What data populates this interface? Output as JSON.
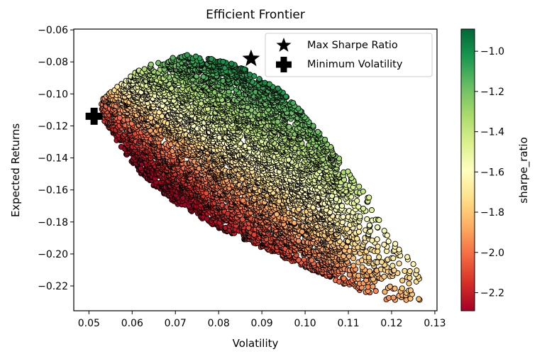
{
  "chart_data": {
    "type": "scatter",
    "title": "Efficient Frontier",
    "xlabel": "Volatility",
    "ylabel": "Expected Returns",
    "xlim": [
      0.0465,
      0.1305
    ],
    "ylim": [
      -0.2355,
      -0.0595
    ],
    "xticks": [
      0.05,
      0.06,
      0.07,
      0.08,
      0.09,
      0.1,
      0.11,
      0.12,
      0.13
    ],
    "xtick_labels": [
      "0.05",
      "0.06",
      "0.07",
      "0.08",
      "0.09",
      "0.10",
      "0.11",
      "0.12",
      "0.13"
    ],
    "yticks": [
      -0.06,
      -0.08,
      -0.1,
      -0.12,
      -0.14,
      -0.16,
      -0.18,
      -0.2,
      -0.22
    ],
    "ytick_labels": [
      "−0.06",
      "−0.08",
      "−0.10",
      "−0.12",
      "−0.14",
      "−0.16",
      "−0.18",
      "−0.20",
      "−0.22"
    ],
    "colorbar": {
      "label": "sharpe_ratio",
      "colormap": "RdYlGn",
      "range": [
        -2.29,
        -0.89
      ],
      "ticks": [
        -1.0,
        -1.2,
        -1.4,
        -1.6,
        -1.8,
        -2.0,
        -2.2
      ],
      "tick_labels": [
        "−1.0",
        "−1.2",
        "−1.4",
        "−1.6",
        "−1.8",
        "−2.0",
        "−2.2"
      ],
      "colors": [
        "#a50026",
        "#d73027",
        "#f46d43",
        "#fdae61",
        "#fee08b",
        "#ffffbf",
        "#d9ef8b",
        "#a6d96a",
        "#66bd63",
        "#1a9850",
        "#006837"
      ]
    },
    "legend": {
      "placement": "top-right",
      "entries": [
        {
          "label": "Max Sharpe Ratio",
          "marker": "star"
        },
        {
          "label": "Minimum Volatility",
          "marker": "plus"
        }
      ]
    },
    "special_points": {
      "max_sharpe": {
        "x": 0.0875,
        "y": -0.078
      },
      "min_volatility": {
        "x": 0.0512,
        "y": -0.114
      }
    },
    "cloud_boundary": [
      [
        0.0525,
        -0.1045
      ],
      [
        0.0585,
        -0.0905
      ],
      [
        0.0625,
        -0.0835
      ],
      [
        0.0675,
        -0.078
      ],
      [
        0.0725,
        -0.0755
      ],
      [
        0.078,
        -0.0775
      ],
      [
        0.084,
        -0.081
      ],
      [
        0.0905,
        -0.092
      ],
      [
        0.0955,
        -0.099
      ],
      [
        0.101,
        -0.117
      ],
      [
        0.106,
        -0.133
      ],
      [
        0.11,
        -0.148
      ],
      [
        0.115,
        -0.165
      ],
      [
        0.118,
        -0.182
      ],
      [
        0.122,
        -0.196
      ],
      [
        0.1265,
        -0.21
      ],
      [
        0.1265,
        -0.229
      ],
      [
        0.116,
        -0.229
      ],
      [
        0.11,
        -0.22
      ],
      [
        0.098,
        -0.206
      ],
      [
        0.09,
        -0.196
      ],
      [
        0.08,
        -0.184
      ],
      [
        0.07,
        -0.168
      ],
      [
        0.063,
        -0.153
      ],
      [
        0.0575,
        -0.134
      ],
      [
        0.0535,
        -0.117
      ]
    ],
    "sample_count": 6000
  }
}
